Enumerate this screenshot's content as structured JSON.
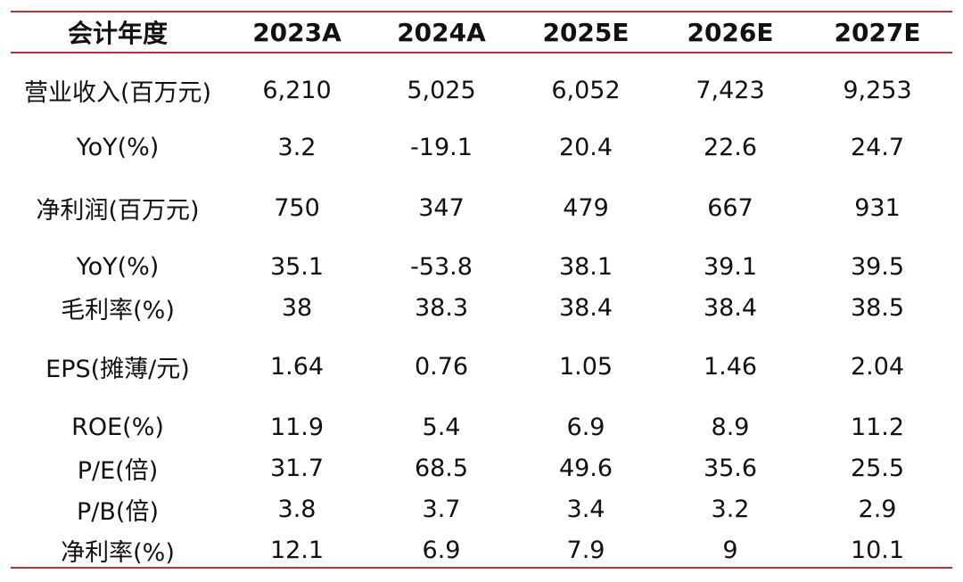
{
  "table": {
    "headers": [
      "会计年度",
      "2023A",
      "2024A",
      "2025E",
      "2026E",
      "2027E"
    ],
    "rows": [
      {
        "label": "营业收入(百万元)",
        "values": [
          "6,210",
          "5,025",
          "6,052",
          "7,423",
          "9,253"
        ]
      },
      {
        "label": "YoY(%)",
        "values": [
          "3.2",
          "-19.1",
          "20.4",
          "22.6",
          "24.7"
        ]
      },
      {
        "label": "净利润(百万元)",
        "values": [
          "750",
          "347",
          "479",
          "667",
          "931"
        ]
      },
      {
        "label": "YoY(%)",
        "values": [
          "35.1",
          "-53.8",
          "38.1",
          "39.1",
          "39.5"
        ]
      },
      {
        "label": "毛利率(%)",
        "values": [
          "38",
          "38.3",
          "38.4",
          "38.4",
          "38.5"
        ]
      },
      {
        "label": "EPS(摊薄/元)",
        "values": [
          "1.64",
          "0.76",
          "1.05",
          "1.46",
          "2.04"
        ]
      },
      {
        "label": "ROE(%)",
        "values": [
          "11.9",
          "5.4",
          "6.9",
          "8.9",
          "11.2"
        ]
      },
      {
        "label": "P/E(倍)",
        "values": [
          "31.7",
          "68.5",
          "49.6",
          "35.6",
          "25.5"
        ]
      },
      {
        "label": "P/B(倍)",
        "values": [
          "3.8",
          "3.7",
          "3.4",
          "3.2",
          "2.9"
        ]
      },
      {
        "label": "净利率(%)",
        "values": [
          "12.1",
          "6.9",
          "7.9",
          "9",
          "10.1"
        ]
      }
    ],
    "rule_color": "#b0343a"
  }
}
